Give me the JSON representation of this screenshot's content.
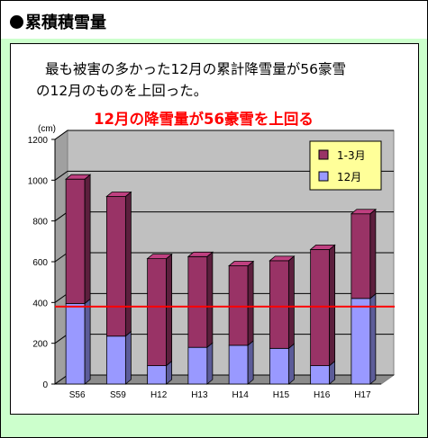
{
  "header": {
    "title": "累積積雪量"
  },
  "description": {
    "line1": "最も被害の多かった12月の累計降雪量が56豪雪",
    "line2": "の12月のものを上回った。"
  },
  "chart_data": {
    "type": "bar",
    "stacked": true,
    "three_d": true,
    "title": "12月の降雪量が56豪雪を上回る",
    "ylabel": "(cm)",
    "ylim": [
      0,
      1200
    ],
    "yticks": [
      "0",
      "200",
      "400",
      "600",
      "800",
      "1000",
      "1200"
    ],
    "grid": true,
    "legend_position": "top-right",
    "categories": [
      "S56",
      "S59",
      "H12",
      "H13",
      "H14",
      "H15",
      "H16",
      "H17"
    ],
    "series": [
      {
        "name": "12月",
        "color": "#9999ff",
        "values": [
          395,
          235,
          90,
          180,
          190,
          175,
          90,
          420
        ]
      },
      {
        "name": "1-3月",
        "color": "#993366",
        "values": [
          610,
          685,
          525,
          445,
          390,
          430,
          570,
          415
        ]
      }
    ],
    "reference_line": {
      "value": 380,
      "color": "#ff0000"
    }
  }
}
